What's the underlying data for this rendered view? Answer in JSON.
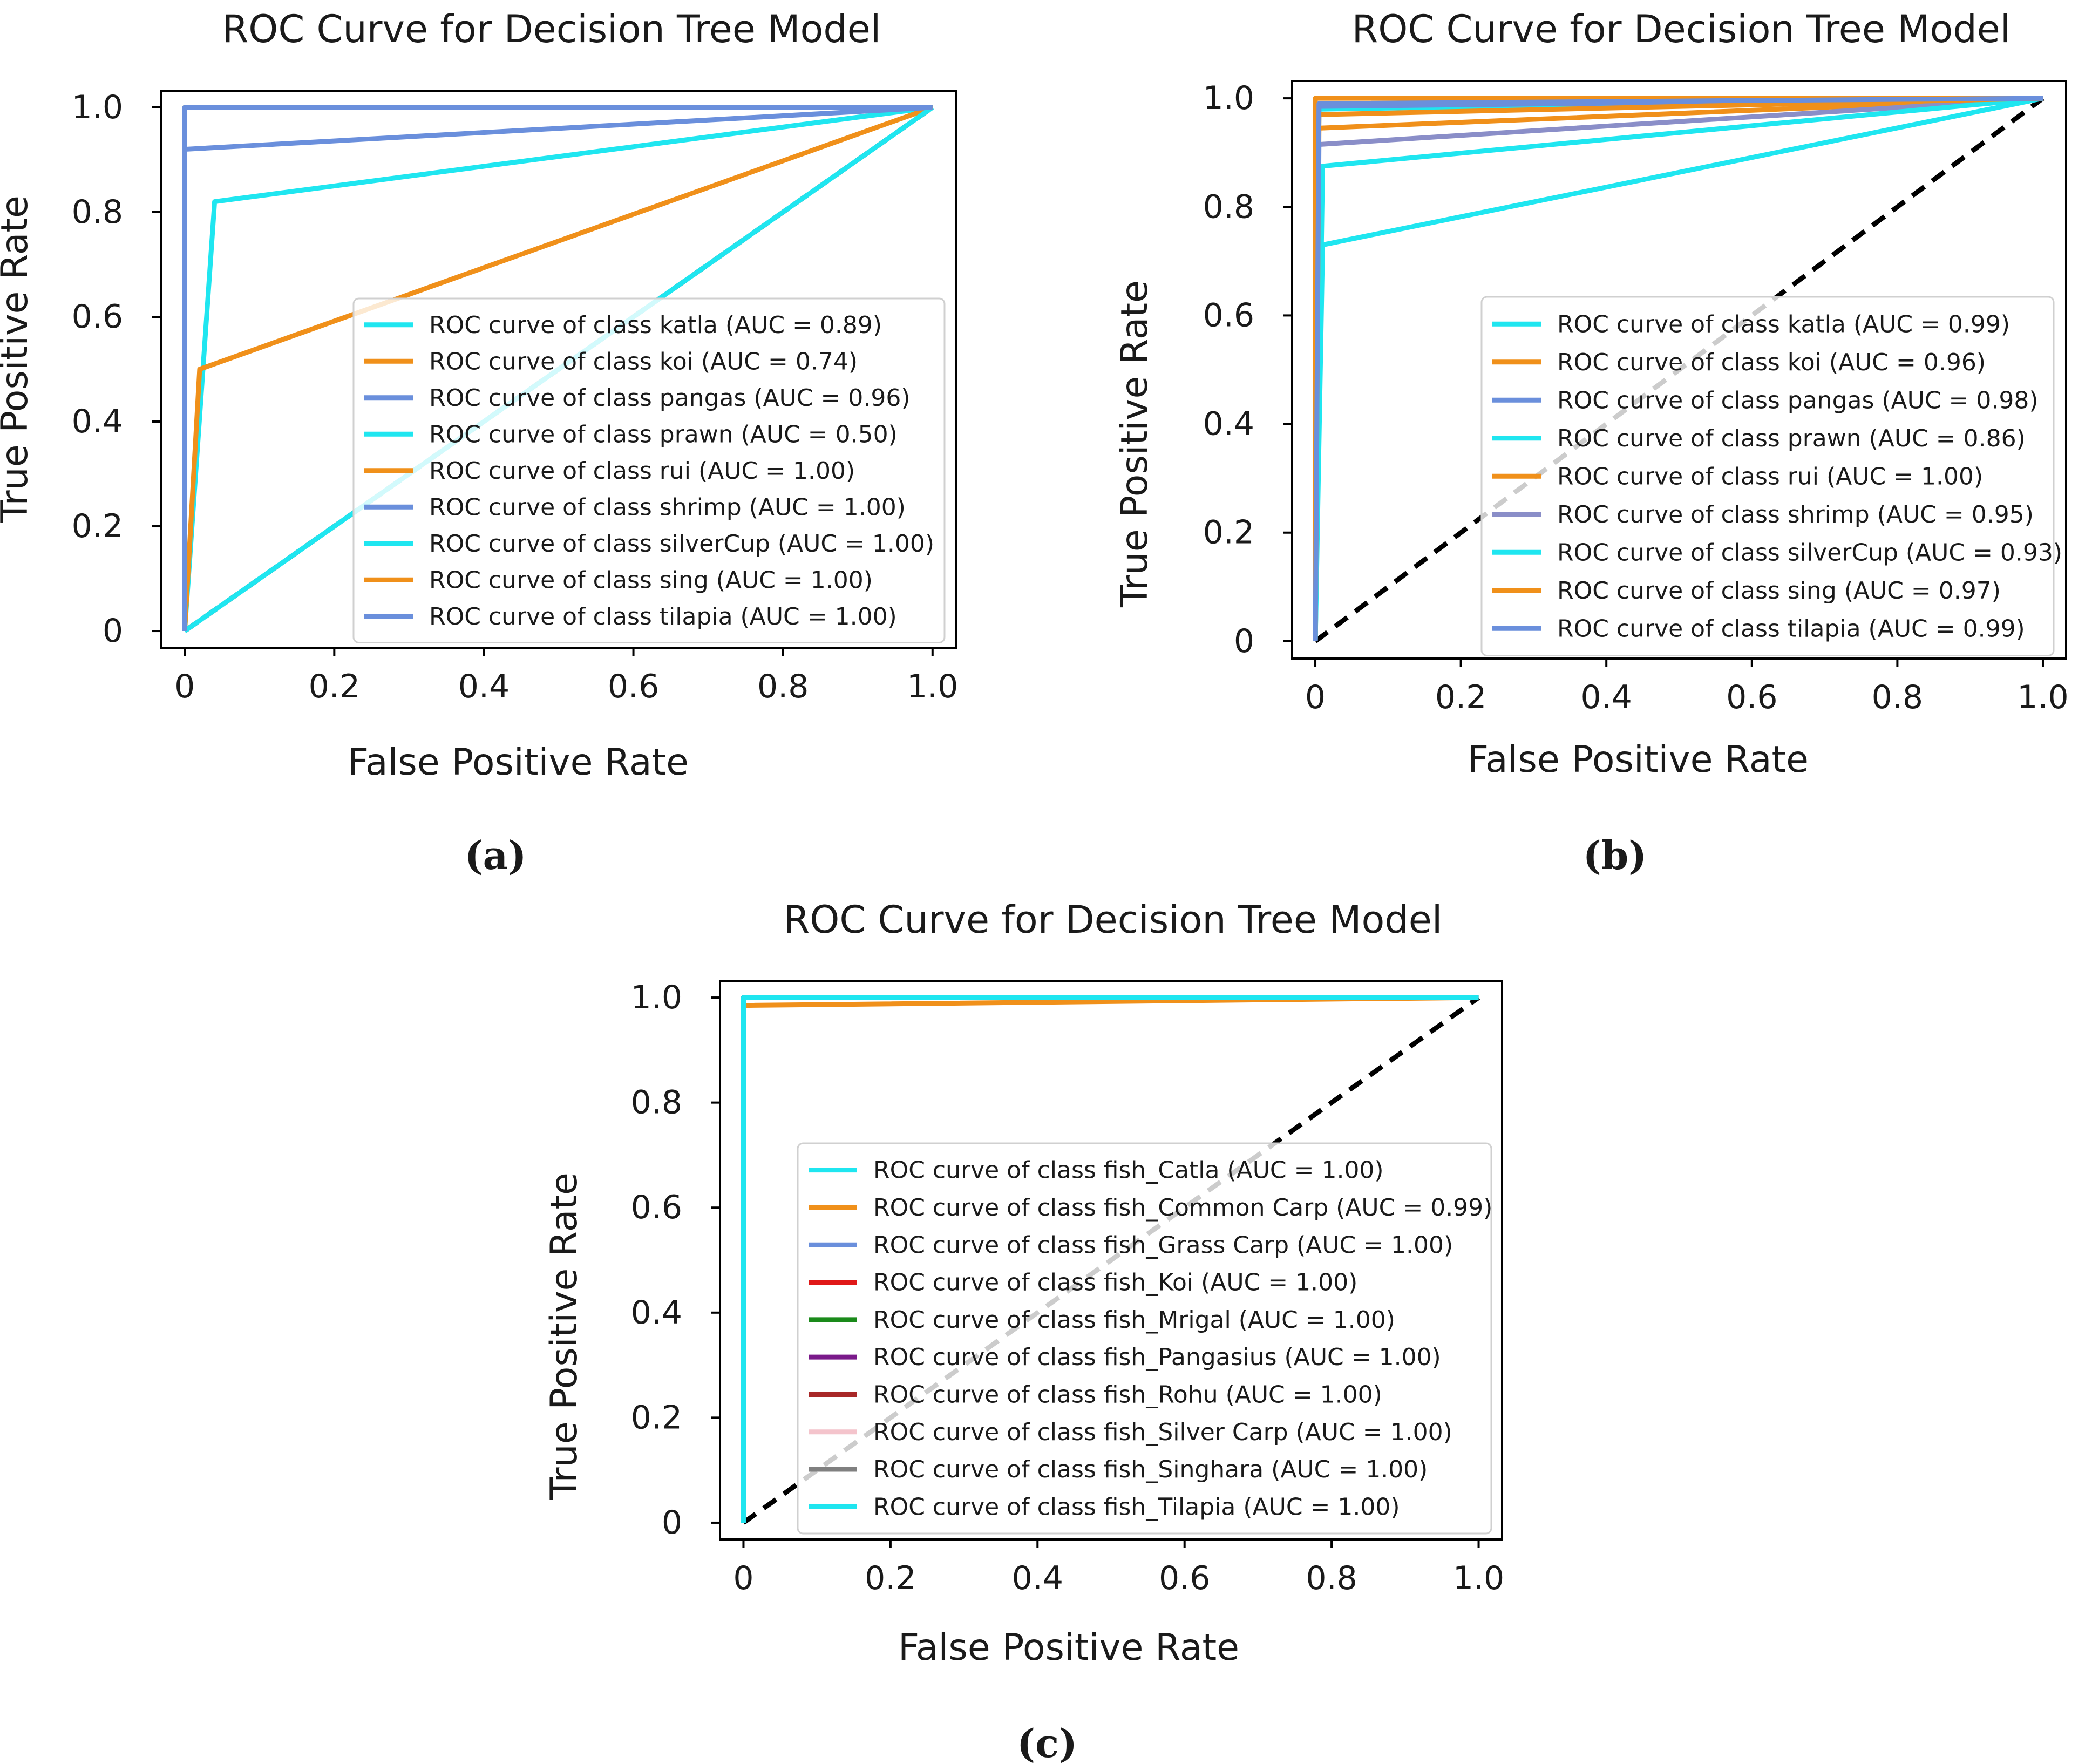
{
  "chart_data": [
    {
      "type": "line",
      "panel": "a",
      "title": "ROC Curve for Decision Tree Model",
      "xlabel": "False Positive Rate",
      "ylabel": "True Positive Rate",
      "xlim": [
        0,
        1
      ],
      "ylim": [
        0,
        1
      ],
      "xticks": [
        "0",
        "0.2",
        "0.4",
        "0.6",
        "0.8",
        "1.0"
      ],
      "yticks": [
        "0",
        "0.2",
        "0.4",
        "0.6",
        "0.8",
        "1.0"
      ],
      "legend_position": "lower-right",
      "series": [
        {
          "name": "ROC curve of class katla (AUC = 0.89)",
          "color": "#1fe6f0",
          "x": [
            0,
            0.04,
            1
          ],
          "y": [
            0,
            0.82,
            1
          ]
        },
        {
          "name": "ROC curve of class koi (AUC = 0.74)",
          "color": "#f0901a",
          "x": [
            0,
            0.02,
            1
          ],
          "y": [
            0,
            0.5,
            1
          ]
        },
        {
          "name": "ROC curve of class pangas (AUC = 0.96)",
          "color": "#6a8fdc",
          "x": [
            0,
            0,
            1
          ],
          "y": [
            0,
            0.92,
            1
          ]
        },
        {
          "name": "ROC curve of class prawn (AUC = 0.50)",
          "color": "#1fe6f0",
          "x": [
            0,
            1
          ],
          "y": [
            0,
            1
          ]
        },
        {
          "name": "ROC curve of class rui (AUC = 1.00)",
          "color": "#f0901a",
          "x": [
            0,
            0,
            1
          ],
          "y": [
            0,
            1,
            1
          ]
        },
        {
          "name": "ROC curve of class shrimp (AUC = 1.00)",
          "color": "#6a8fdc",
          "x": [
            0,
            0,
            1
          ],
          "y": [
            0,
            1,
            1
          ]
        },
        {
          "name": "ROC curve of class silverCup (AUC = 1.00)",
          "color": "#1fe6f0",
          "x": [
            0,
            0,
            1
          ],
          "y": [
            0,
            1,
            1
          ]
        },
        {
          "name": "ROC curve of class sing (AUC = 1.00)",
          "color": "#f0901a",
          "x": [
            0,
            0,
            1
          ],
          "y": [
            0,
            1,
            1
          ]
        },
        {
          "name": "ROC curve of class tilapia (AUC = 1.00)",
          "color": "#6a8fdc",
          "x": [
            0,
            0,
            1
          ],
          "y": [
            0,
            1,
            1
          ]
        }
      ],
      "caption": "(a)"
    },
    {
      "type": "line",
      "panel": "b",
      "title": "ROC Curve for Decision Tree Model",
      "xlabel": "False Positive Rate",
      "ylabel": "True Positive Rate",
      "xlim": [
        0,
        1
      ],
      "ylim": [
        0,
        1
      ],
      "xticks": [
        "0",
        "0.2",
        "0.4",
        "0.6",
        "0.8",
        "1.0"
      ],
      "yticks": [
        "0",
        "0.2",
        "0.4",
        "0.6",
        "0.8",
        "1.0"
      ],
      "legend_position": "lower-right",
      "series": [
        {
          "name": "ROC curve of class katla (AUC = 0.99)",
          "color": "#1fe6f0",
          "x": [
            0,
            0.005,
            1
          ],
          "y": [
            0,
            0.98,
            1
          ]
        },
        {
          "name": "ROC curve of class koi (AUC = 0.96)",
          "color": "#f0901a",
          "x": [
            0,
            0.005,
            1
          ],
          "y": [
            0,
            0.945,
            1
          ]
        },
        {
          "name": "ROC curve of class pangas (AUC = 0.98)",
          "color": "#6a8fdc",
          "x": [
            0,
            0.005,
            1
          ],
          "y": [
            0,
            0.985,
            1
          ]
        },
        {
          "name": "ROC curve of class prawn (AUC = 0.86)",
          "color": "#1fe6f0",
          "x": [
            0,
            0.01,
            1
          ],
          "y": [
            0,
            0.73,
            1
          ]
        },
        {
          "name": "ROC curve of class rui (AUC = 1.00)",
          "color": "#f0901a",
          "x": [
            0,
            0,
            1
          ],
          "y": [
            0,
            1,
            1
          ]
        },
        {
          "name": "ROC curve of class shrimp (AUC = 0.95)",
          "color": "#8a8ec8",
          "x": [
            0,
            0.005,
            1
          ],
          "y": [
            0,
            0.915,
            1
          ]
        },
        {
          "name": "ROC curve of class silverCup (AUC = 0.93)",
          "color": "#1fe6f0",
          "x": [
            0,
            0.01,
            1
          ],
          "y": [
            0,
            0.875,
            1
          ]
        },
        {
          "name": "ROC curve of class sing (AUC = 0.97)",
          "color": "#f0901a",
          "x": [
            0,
            0.005,
            1
          ],
          "y": [
            0,
            0.97,
            1
          ]
        },
        {
          "name": "ROC curve of class tilapia (AUC = 0.99)",
          "color": "#6a8fdc",
          "x": [
            0,
            0.005,
            1
          ],
          "y": [
            0,
            0.99,
            1
          ]
        }
      ],
      "caption": "(b)"
    },
    {
      "type": "line",
      "panel": "c",
      "title": "ROC Curve for Decision Tree Model",
      "xlabel": "False Positive Rate",
      "ylabel": "True Positive Rate",
      "xlim": [
        0,
        1
      ],
      "ylim": [
        0,
        1
      ],
      "xticks": [
        "0",
        "0.2",
        "0.4",
        "0.6",
        "0.8",
        "1.0"
      ],
      "yticks": [
        "0",
        "0.2",
        "0.4",
        "0.6",
        "0.8",
        "1.0"
      ],
      "legend_position": "lower-right",
      "series": [
        {
          "name": "ROC curve of class fish_Catla (AUC = 1.00)",
          "color": "#1fe6f0",
          "x": [
            0,
            0,
            1
          ],
          "y": [
            0,
            1,
            1
          ]
        },
        {
          "name": "ROC curve of class fish_Common Carp (AUC = 0.99)",
          "color": "#f0901a",
          "x": [
            0,
            0,
            1
          ],
          "y": [
            0,
            0.985,
            1
          ]
        },
        {
          "name": "ROC curve of class fish_Grass Carp (AUC = 1.00)",
          "color": "#6a8fdc",
          "x": [
            0,
            0,
            1
          ],
          "y": [
            0,
            1,
            1
          ]
        },
        {
          "name": "ROC curve of class fish_Koi (AUC = 1.00)",
          "color": "#e01818",
          "x": [
            0,
            0,
            1
          ],
          "y": [
            0,
            1,
            1
          ]
        },
        {
          "name": "ROC curve of class fish_Mrigal (AUC = 1.00)",
          "color": "#1a8a1a",
          "x": [
            0,
            0,
            1
          ],
          "y": [
            0,
            1,
            1
          ]
        },
        {
          "name": "ROC curve of class fish_Pangasius (AUC = 1.00)",
          "color": "#7a1a8a",
          "x": [
            0,
            0,
            1
          ],
          "y": [
            0,
            1,
            1
          ]
        },
        {
          "name": "ROC curve of class fish_Rohu (AUC = 1.00)",
          "color": "#a82828",
          "x": [
            0,
            0,
            1
          ],
          "y": [
            0,
            1,
            1
          ]
        },
        {
          "name": "ROC curve of class fish_Silver Carp (AUC = 1.00)",
          "color": "#f4c4cc",
          "x": [
            0,
            0,
            1
          ],
          "y": [
            0,
            1,
            1
          ]
        },
        {
          "name": "ROC curve of class fish_Singhara (AUC = 1.00)",
          "color": "#808080",
          "x": [
            0,
            0,
            1
          ],
          "y": [
            0,
            1,
            1
          ]
        },
        {
          "name": "ROC curve of class fish_Tilapia (AUC = 1.00)",
          "color": "#1fe6f0",
          "x": [
            0,
            0,
            1
          ],
          "y": [
            0,
            1,
            1
          ]
        }
      ],
      "caption": "(c)"
    }
  ]
}
